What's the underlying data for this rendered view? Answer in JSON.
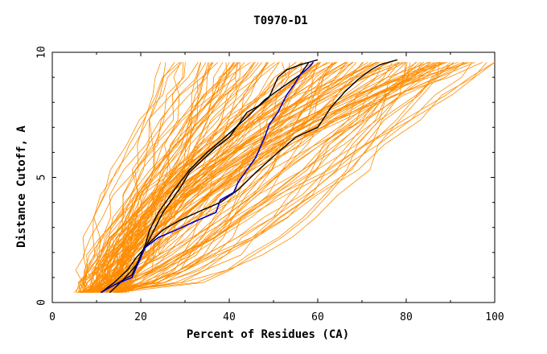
{
  "chart_data": {
    "type": "line",
    "title": "T0970-D1",
    "xlabel": "Percent of Residues (CA)",
    "ylabel": "Distance Cutoff, A",
    "xlim": [
      0,
      100
    ],
    "ylim": [
      0,
      10
    ],
    "x_ticks": [
      0,
      20,
      40,
      60,
      80,
      100
    ],
    "y_ticks": [
      0,
      5,
      10
    ],
    "grid": false,
    "legend": "none",
    "colors": {
      "background_models": "#ff8c00",
      "highlight": "#0000cc",
      "reference": "#000000"
    },
    "series": [
      {
        "role": "highlight",
        "x": [
          11,
          14,
          18,
          19,
          21,
          24,
          28,
          33,
          37,
          38,
          41,
          42,
          44,
          46,
          48,
          49,
          51,
          53,
          55,
          56,
          58,
          59
        ],
        "y": [
          0.4,
          0.7,
          1.0,
          1.4,
          2.2,
          2.6,
          2.9,
          3.3,
          3.6,
          4.1,
          4.4,
          4.8,
          5.3,
          5.8,
          6.6,
          7.1,
          7.6,
          8.3,
          8.8,
          9.1,
          9.4,
          9.6
        ]
      },
      {
        "role": "reference",
        "x": [
          11,
          14,
          18,
          19,
          20,
          21,
          22,
          24,
          26,
          28,
          31,
          35,
          39,
          44,
          48,
          52,
          56,
          58
        ],
        "y": [
          0.4,
          0.7,
          1.1,
          1.5,
          1.9,
          2.3,
          2.9,
          3.6,
          4.1,
          4.6,
          5.3,
          6.0,
          6.6,
          7.4,
          8.1,
          8.6,
          9.1,
          9.6
        ]
      },
      {
        "role": "reference",
        "x": [
          13,
          16,
          19,
          21,
          23,
          25,
          27,
          29,
          31,
          34,
          37,
          40,
          42,
          44,
          47,
          49,
          50,
          51,
          53,
          56,
          60
        ],
        "y": [
          0.4,
          0.9,
          1.5,
          2.2,
          2.9,
          3.6,
          4.1,
          4.6,
          5.2,
          5.7,
          6.2,
          6.6,
          7.1,
          7.6,
          7.9,
          8.2,
          8.6,
          9.0,
          9.3,
          9.5,
          9.7
        ]
      },
      {
        "role": "reference",
        "x": [
          11,
          14,
          17,
          19,
          22,
          25,
          29,
          34,
          38,
          42,
          46,
          51,
          55,
          60,
          63,
          66,
          69,
          72,
          74,
          76,
          78
        ],
        "y": [
          0.4,
          0.8,
          1.3,
          1.8,
          2.4,
          2.9,
          3.3,
          3.7,
          4.0,
          4.5,
          5.2,
          6.0,
          6.6,
          7.0,
          7.8,
          8.4,
          8.9,
          9.3,
          9.5,
          9.6,
          9.7
        ]
      }
    ]
  }
}
